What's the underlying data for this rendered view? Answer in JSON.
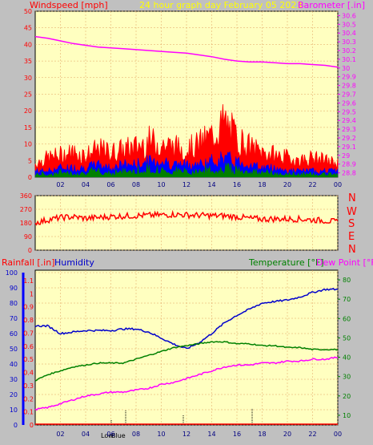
{
  "header": {
    "left": "Windspeed [mph]",
    "center": "24 hour graph day   February 05 2023",
    "right": "Barometer [.in]"
  },
  "direction_labels": [
    "N",
    "W",
    "S",
    "E",
    "N"
  ],
  "bottom_header": {
    "rain": "Rainfall [.in]",
    "humidity": "Humidity",
    "temperature": "Temperature [°F]",
    "dewpoint": "Dew Point [°F]"
  },
  "markers": {
    "low": "Low",
    "blue": "Blue"
  },
  "colors": {
    "plot_bg": "#ffffc0",
    "wind": "#ff0000",
    "gust_blue": "#0000ff",
    "gust_green": "#008000",
    "barometer": "#ff00ff",
    "humidity": "#0000cc",
    "temperature": "#008000",
    "dewpoint": "#ff00ff",
    "grid": "#e0a060",
    "title_yellow": "#ffff00"
  },
  "chart_data": [
    {
      "type": "line",
      "name": "wind_barometer",
      "x_ticks": [
        "02",
        "04",
        "06",
        "08",
        "10",
        "12",
        "14",
        "16",
        "18",
        "20",
        "22",
        "00"
      ],
      "y_left_ticks": [
        "0",
        "5",
        "10",
        "15",
        "20",
        "25",
        "30",
        "35",
        "40",
        "45",
        "50"
      ],
      "y_right_ticks": [
        "28.8",
        "28.9",
        "29",
        "29.1",
        "29.2",
        "29.3",
        "29.4",
        "29.5",
        "29.6",
        "29.7",
        "29.8",
        "29.9",
        "30",
        "30.1",
        "30.2",
        "30.3",
        "30.4",
        "30.5",
        "30.6"
      ],
      "ylim_left": [
        0,
        50
      ],
      "ylim_right": [
        28.75,
        30.65
      ],
      "series": [
        {
          "name": "Barometer",
          "axis": "right",
          "x": [
            0,
            1,
            2,
            3,
            4,
            5,
            6,
            7,
            8,
            9,
            10,
            11,
            12,
            13,
            14,
            15,
            16,
            17,
            18,
            19,
            20,
            21,
            22,
            23,
            24
          ],
          "values": [
            30.36,
            30.34,
            30.31,
            30.28,
            30.26,
            30.24,
            30.23,
            30.22,
            30.21,
            30.2,
            30.19,
            30.18,
            30.17,
            30.15,
            30.13,
            30.1,
            30.08,
            30.07,
            30.07,
            30.06,
            30.05,
            30.05,
            30.04,
            30.03,
            30.01
          ]
        },
        {
          "name": "Wind gust",
          "axis": "left",
          "x": [
            0,
            1,
            2,
            3,
            4,
            5,
            6,
            7,
            8,
            9,
            10,
            11,
            12,
            13,
            14,
            15,
            16,
            17,
            18,
            19,
            20,
            21,
            22,
            23,
            24
          ],
          "values": [
            5,
            7,
            8,
            9,
            8,
            10,
            9,
            10,
            11,
            13,
            12,
            11,
            10,
            12,
            15,
            20,
            14,
            11,
            9,
            8,
            7,
            6,
            7,
            6,
            5
          ]
        },
        {
          "name": "Wind average",
          "axis": "left",
          "x": [
            0,
            1,
            2,
            3,
            4,
            5,
            6,
            7,
            8,
            9,
            10,
            11,
            12,
            13,
            14,
            15,
            16,
            17,
            18,
            19,
            20,
            21,
            22,
            23,
            24
          ],
          "values": [
            2,
            2,
            3,
            3,
            3,
            4,
            3,
            4,
            4,
            5,
            5,
            4,
            4,
            4,
            5,
            6,
            5,
            4,
            3,
            3,
            2,
            2,
            2,
            2,
            2
          ]
        }
      ]
    },
    {
      "type": "line",
      "name": "wind_direction",
      "y_ticks": [
        "360",
        "270",
        "180",
        "90",
        "0"
      ],
      "ylim": [
        0,
        360
      ],
      "series": [
        {
          "name": "Direction",
          "x": [
            0,
            1,
            2,
            3,
            4,
            5,
            6,
            7,
            8,
            9,
            10,
            11,
            12,
            13,
            14,
            15,
            16,
            17,
            18,
            19,
            20,
            21,
            22,
            23,
            24
          ],
          "values": [
            180,
            200,
            215,
            220,
            210,
            215,
            222,
            225,
            228,
            230,
            232,
            236,
            232,
            230,
            228,
            226,
            220,
            210,
            205,
            206,
            206,
            205,
            200,
            195,
            185
          ]
        }
      ]
    },
    {
      "type": "line",
      "name": "rain_humidity_temperature",
      "y_rain_ticks": [
        "0",
        "0.1",
        "0.2",
        "0.3",
        "0.4",
        "0.5",
        "0.6",
        "0.7",
        "0.8",
        "0.9",
        "1",
        "1.1"
      ],
      "y_humidity_ticks": [
        "0",
        "10",
        "20",
        "30",
        "40",
        "50",
        "60",
        "70",
        "80",
        "90",
        "100"
      ],
      "y_temp_ticks": [
        "10",
        "20",
        "30",
        "40",
        "50",
        "60",
        "70",
        "80"
      ],
      "ylim_humidity": [
        0,
        100
      ],
      "ylim_temperature": [
        5,
        85
      ],
      "series": [
        {
          "name": "Humidity",
          "axis": "humidity",
          "x": [
            0,
            1,
            2,
            3,
            4,
            5,
            6,
            7,
            8,
            9,
            10,
            11,
            12,
            13,
            14,
            15,
            16,
            17,
            18,
            19,
            20,
            21,
            22,
            23,
            24
          ],
          "values": [
            65,
            65,
            60,
            61,
            62,
            62,
            62,
            63,
            63,
            61,
            57,
            53,
            50,
            54,
            60,
            67,
            72,
            76,
            80,
            81,
            82,
            84,
            87,
            89,
            89
          ]
        },
        {
          "name": "Temperature",
          "axis": "temperature",
          "x": [
            0,
            1,
            2,
            3,
            4,
            5,
            6,
            7,
            8,
            9,
            10,
            11,
            12,
            13,
            14,
            15,
            16,
            17,
            18,
            19,
            20,
            21,
            22,
            23,
            24
          ],
          "values": [
            28,
            31,
            33,
            35,
            36,
            37,
            37,
            37,
            39,
            41,
            43,
            45,
            46,
            47,
            48,
            48,
            47,
            47,
            46,
            46,
            45,
            45,
            44,
            44,
            44
          ]
        },
        {
          "name": "Dew Point",
          "axis": "temperature",
          "x": [
            0,
            1,
            2,
            3,
            4,
            5,
            6,
            7,
            8,
            9,
            10,
            11,
            12,
            13,
            14,
            15,
            16,
            17,
            18,
            19,
            20,
            21,
            22,
            23,
            24
          ],
          "values": [
            13,
            14,
            16,
            18,
            20,
            21,
            22,
            22,
            23,
            24,
            26,
            27,
            29,
            31,
            33,
            35,
            36,
            36,
            37,
            37,
            38,
            38,
            39,
            39,
            40
          ]
        }
      ]
    }
  ]
}
